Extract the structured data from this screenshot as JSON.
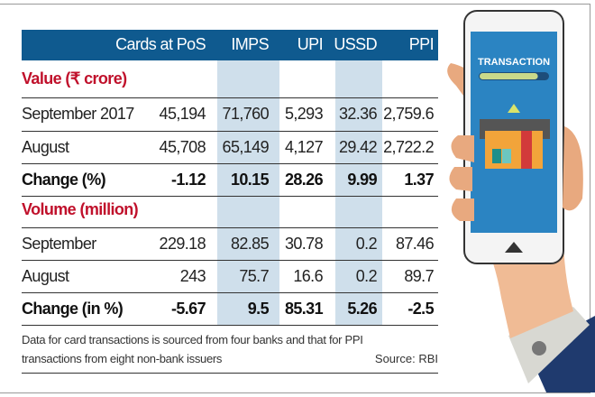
{
  "chart_data": {
    "type": "table",
    "columns": [
      "",
      "Cards at PoS",
      "IMPS",
      "UPI",
      "USSD",
      "PPI"
    ],
    "sections": [
      {
        "title": "Value (₹ crore)",
        "rows": [
          {
            "label": "September 2017",
            "values": [
              "45,194",
              "71,760",
              "5,293",
              "32.36",
              "2,759.6"
            ]
          },
          {
            "label": "August",
            "values": [
              "45,708",
              "65,149",
              "4,127",
              "29.42",
              "2,722.2"
            ]
          },
          {
            "label": "Change (%)",
            "values": [
              "-1.12",
              "10.15",
              "28.26",
              "9.99",
              "1.37"
            ]
          }
        ]
      },
      {
        "title": "Volume (million)",
        "rows": [
          {
            "label": "September",
            "values": [
              "229.18",
              "82.85",
              "30.78",
              "0.2",
              "87.46"
            ]
          },
          {
            "label": "August",
            "values": [
              "243",
              "75.7",
              "16.6",
              "0.2",
              "89.7"
            ]
          },
          {
            "label": "Change (in %)",
            "values": [
              "-5.67",
              "9.5",
              "85.31",
              "5.26",
              "-2.5"
            ]
          }
        ]
      }
    ],
    "footnote_line1": "Data for card transactions is sourced from four banks and that for PPI",
    "footnote_line2": "transactions from eight non-bank issuers",
    "source": "Source: RBI"
  },
  "illustration": {
    "screen_text": "TRANSACTION",
    "progress": 0.85
  },
  "colors": {
    "header": "#0f5a8f",
    "section_title": "#c0102b",
    "shade": "#cfdfeb"
  }
}
